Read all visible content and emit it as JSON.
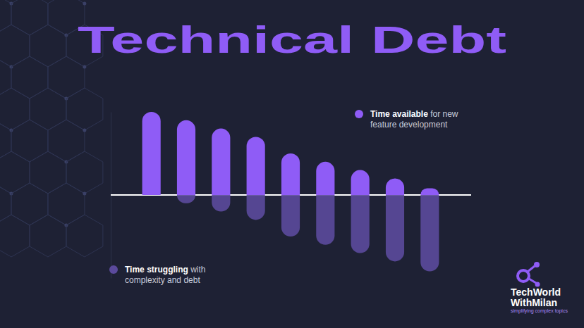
{
  "chart_data": {
    "type": "bar",
    "title": "Technical Debt",
    "categories": [
      null,
      null,
      null,
      null,
      null,
      null,
      null,
      null,
      null
    ],
    "series": [
      {
        "name": "Time available for new feature development",
        "color": "#8f5cf6",
        "values": [
          100,
          90,
          80,
          70,
          50,
          40,
          30,
          20,
          8
        ]
      },
      {
        "name": "Time struggling with complexity and debt",
        "color": "#5b4a9c",
        "values": [
          0,
          -10,
          -20,
          -30,
          -50,
          -60,
          -70,
          -80,
          -92
        ]
      }
    ],
    "ylim": [
      -100,
      100
    ],
    "yticks": [
      0
    ],
    "grid": true,
    "stacked": true,
    "tick_labels": false,
    "data_labels": false,
    "annotations": [
      "TechWorld",
      "WithMilan",
      "simplifying complex topics"
    ]
  }
}
